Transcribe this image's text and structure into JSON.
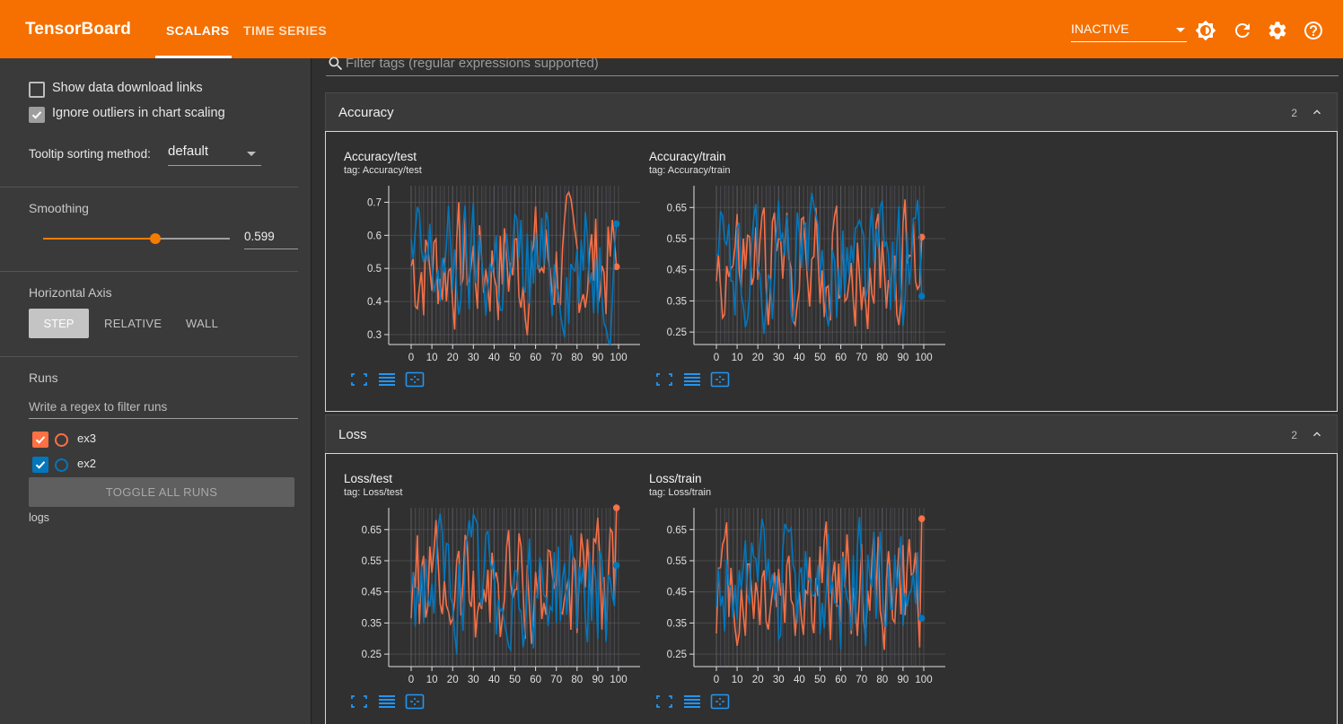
{
  "header": {
    "brand": "TensorBoard",
    "tabs": [
      {
        "label": "SCALARS",
        "active": true
      },
      {
        "label": "TIME SERIES",
        "active": false
      }
    ],
    "status_select": "INACTIVE",
    "icons": [
      "brightness-icon",
      "refresh-icon",
      "settings-icon",
      "help-icon"
    ]
  },
  "sidebar": {
    "show_download_links": {
      "label": "Show data download links",
      "checked": false
    },
    "ignore_outliers": {
      "label": "Ignore outliers in chart scaling",
      "checked": true
    },
    "tooltip_sorting": {
      "label": "Tooltip sorting method:",
      "value": "default"
    },
    "smoothing": {
      "label": "Smoothing",
      "value": "0.599",
      "fraction": 0.599
    },
    "horizontal_axis": {
      "label": "Horizontal Axis",
      "options": [
        "STEP",
        "RELATIVE",
        "WALL"
      ],
      "selected": "STEP"
    },
    "runs": {
      "label": "Runs",
      "filter_placeholder": "Write a regex to filter runs",
      "items": [
        {
          "name": "ex3",
          "color": "#ff7043",
          "checked": true
        },
        {
          "name": "ex2",
          "color": "#0277bd",
          "checked": true
        }
      ],
      "toggle_all": "TOGGLE ALL RUNS",
      "logdir": "logs"
    }
  },
  "main": {
    "filter_placeholder": "Filter tags (regular expressions supported)",
    "categories": [
      {
        "title": "Accuracy",
        "count": "2"
      },
      {
        "title": "Loss",
        "count": "2"
      }
    ]
  },
  "colors": {
    "accent": "#f57000",
    "ex3": "#ff7043",
    "ex2": "#0277bd"
  },
  "chart_data": [
    {
      "type": "line",
      "title": "Accuracy/test",
      "tag_label": "tag: Accuracy/test",
      "x_ticks": [
        "0",
        "10",
        "20",
        "30",
        "40",
        "50",
        "60",
        "70",
        "80",
        "90",
        "100"
      ],
      "y_ticks": [
        "0.3",
        "0.4",
        "0.5",
        "0.6",
        "0.7"
      ],
      "y_tick_values": [
        0.3,
        0.4,
        0.5,
        0.6,
        0.7
      ],
      "xlim": [
        0,
        100
      ],
      "ylim": [
        0.27,
        0.75
      ],
      "series": [
        {
          "name": "ex3",
          "color": "#ff7043",
          "end": {
            "x": 99,
            "y": 0.505
          }
        },
        {
          "name": "ex2",
          "color": "#0277bd",
          "end": {
            "x": 99,
            "y": 0.635
          }
        }
      ]
    },
    {
      "type": "line",
      "title": "Accuracy/train",
      "tag_label": "tag: Accuracy/train",
      "x_ticks": [
        "0",
        "10",
        "20",
        "30",
        "40",
        "50",
        "60",
        "70",
        "80",
        "90",
        "100"
      ],
      "y_ticks": [
        "0.25",
        "0.35",
        "0.45",
        "0.55",
        "0.65"
      ],
      "y_tick_values": [
        0.25,
        0.35,
        0.45,
        0.55,
        0.65
      ],
      "xlim": [
        0,
        100
      ],
      "ylim": [
        0.21,
        0.72
      ],
      "series": [
        {
          "name": "ex3",
          "color": "#ff7043",
          "end": {
            "x": 99,
            "y": 0.555
          }
        },
        {
          "name": "ex2",
          "color": "#0277bd",
          "end": {
            "x": 99,
            "y": 0.365
          }
        }
      ]
    },
    {
      "type": "line",
      "title": "Loss/test",
      "tag_label": "tag: Loss/test",
      "x_ticks": [
        "0",
        "10",
        "20",
        "30",
        "40",
        "50",
        "60",
        "70",
        "80",
        "90",
        "100"
      ],
      "y_ticks": [
        "0.25",
        "0.35",
        "0.45",
        "0.55",
        "0.65"
      ],
      "y_tick_values": [
        0.25,
        0.35,
        0.45,
        0.55,
        0.65
      ],
      "xlim": [
        0,
        100
      ],
      "ylim": [
        0.21,
        0.72
      ],
      "series": [
        {
          "name": "ex3",
          "color": "#ff7043",
          "end": {
            "x": 99,
            "y": 0.72
          }
        },
        {
          "name": "ex2",
          "color": "#0277bd",
          "end": {
            "x": 99,
            "y": 0.535
          }
        }
      ]
    },
    {
      "type": "line",
      "title": "Loss/train",
      "tag_label": "tag: Loss/train",
      "x_ticks": [
        "0",
        "10",
        "20",
        "30",
        "40",
        "50",
        "60",
        "70",
        "80",
        "90",
        "100"
      ],
      "y_ticks": [
        "0.25",
        "0.35",
        "0.45",
        "0.55",
        "0.65"
      ],
      "y_tick_values": [
        0.25,
        0.35,
        0.45,
        0.55,
        0.65
      ],
      "xlim": [
        0,
        100
      ],
      "ylim": [
        0.21,
        0.72
      ],
      "series": [
        {
          "name": "ex3",
          "color": "#ff7043",
          "end": {
            "x": 99,
            "y": 0.685
          }
        },
        {
          "name": "ex2",
          "color": "#0277bd",
          "end": {
            "x": 99,
            "y": 0.365
          }
        }
      ]
    }
  ]
}
